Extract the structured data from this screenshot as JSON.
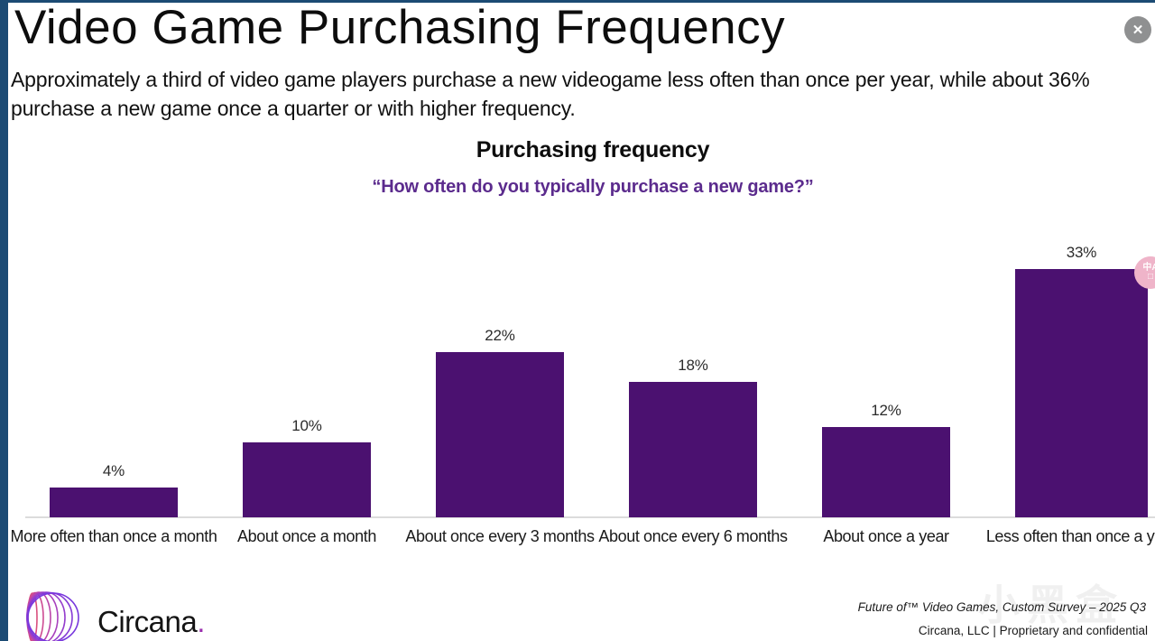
{
  "page": {
    "title": "Video Game Purchasing Frequency",
    "subtitle": "Approximately a third of video game players purchase a new videogame less often than once per year, while about 36% purchase a new game once a quarter or with higher frequency.",
    "close_label": "✕"
  },
  "chart_data": {
    "type": "bar",
    "title": "Purchasing frequency",
    "subtitle": "“How often do you typically purchase a new game?”",
    "categories": [
      "More often than once a month",
      "About once a month",
      "About once every 3 months",
      "About once every 6 months",
      "About once a year",
      "Less often than once a year"
    ],
    "values": [
      4,
      10,
      22,
      18,
      12,
      33
    ],
    "value_labels": [
      "4%",
      "10%",
      "22%",
      "18%",
      "12%",
      "33%"
    ],
    "ylim": [
      0,
      35
    ],
    "xlabel": "",
    "ylabel": "",
    "grid": false,
    "legend": false,
    "bar_color": "#4b1170"
  },
  "footer": {
    "logo_text": "Circana",
    "logo_dot": ".",
    "source_line": "Future of™ Video Games, Custom Survey – 2025 Q3",
    "confidential_line": "Circana, LLC |  Proprietary and confidential"
  },
  "watermark": {
    "text": "小黑盒"
  },
  "colors": {
    "bar": "#4b1170",
    "quote": "#5b2b8d",
    "border": "#1c4b74",
    "axis": "#dcdcdc"
  }
}
